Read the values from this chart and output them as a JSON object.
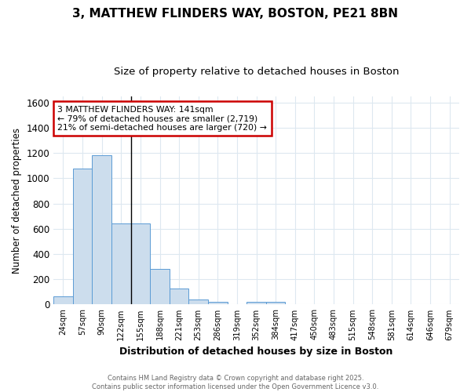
{
  "title_line1": "3, MATTHEW FLINDERS WAY, BOSTON, PE21 8BN",
  "title_line2": "Size of property relative to detached houses in Boston",
  "xlabel": "Distribution of detached houses by size in Boston",
  "ylabel": "Number of detached properties",
  "bar_color": "#ccdded",
  "bar_edge_color": "#5b9bd5",
  "categories": [
    "24sqm",
    "57sqm",
    "90sqm",
    "122sqm",
    "155sqm",
    "188sqm",
    "221sqm",
    "253sqm",
    "286sqm",
    "319sqm",
    "352sqm",
    "384sqm",
    "417sqm",
    "450sqm",
    "483sqm",
    "515sqm",
    "548sqm",
    "581sqm",
    "614sqm",
    "646sqm",
    "679sqm"
  ],
  "values": [
    65,
    1080,
    1185,
    645,
    645,
    280,
    130,
    38,
    22,
    0,
    22,
    22,
    0,
    0,
    0,
    0,
    0,
    0,
    0,
    0,
    0
  ],
  "ylim": [
    0,
    1650
  ],
  "yticks": [
    0,
    200,
    400,
    600,
    800,
    1000,
    1200,
    1400,
    1600
  ],
  "marker_label": "3 MATTHEW FLINDERS WAY: 141sqm",
  "annotation_line2": "← 79% of detached houses are smaller (2,719)",
  "annotation_line3": "21% of semi-detached houses are larger (720) →",
  "vline_bin_index": 3,
  "footer_line1": "Contains HM Land Registry data © Crown copyright and database right 2025.",
  "footer_line2": "Contains public sector information licensed under the Open Government Licence v3.0.",
  "bg_color": "#ffffff",
  "grid_color": "#dde8f0",
  "annotation_box_color": "#ffffff",
  "annotation_box_edge": "#cc0000",
  "title1_fontsize": 11,
  "title2_fontsize": 9.5
}
